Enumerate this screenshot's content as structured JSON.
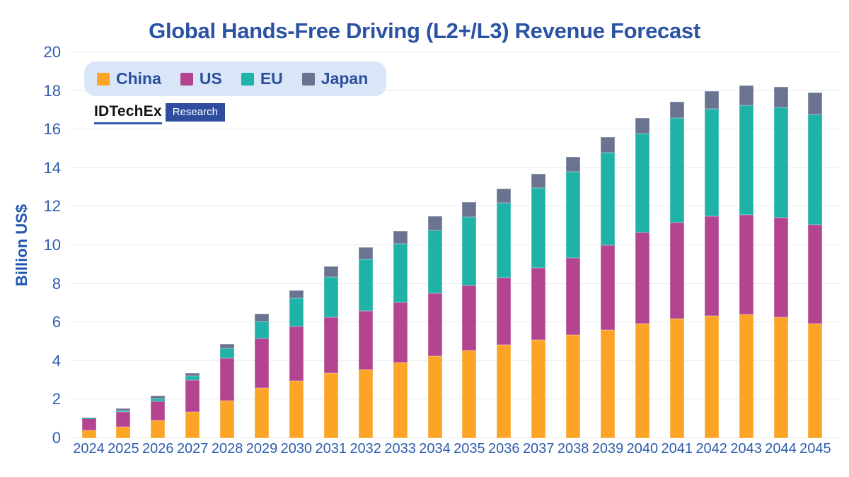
{
  "title": "Global Hands-Free Driving (L2+/L3) Revenue Forecast",
  "ylabel": "Billion US$",
  "logo": {
    "brand": "IDTechEx",
    "sub": "Research"
  },
  "colors": {
    "title_text": "#2b53a4",
    "axis_text": "#2e5cae",
    "legend_background": "#d8e6f8",
    "legend_text": "#2c4f9e",
    "gridline": "#e8eaee",
    "china": "#fca426",
    "us": "#b4448f",
    "eu": "#1fb2a9",
    "japan": "#6a7490"
  },
  "chart_data": {
    "type": "bar",
    "stacked": true,
    "title": "Global Hands-Free Driving (L2+/L3) Revenue Forecast",
    "xlabel": "",
    "ylabel": "Billion US$",
    "ylim": [
      0,
      20
    ],
    "ytick_step": 2,
    "ytick_labels": [
      "0",
      "2",
      "4",
      "6",
      "8",
      "10",
      "12",
      "14",
      "16",
      "18",
      "20"
    ],
    "grid": "horizontal",
    "legend_position": "top-left",
    "categories": [
      "2024",
      "2025",
      "2026",
      "2027",
      "2028",
      "2029",
      "2030",
      "2031",
      "2032",
      "2033",
      "2034",
      "2035",
      "2036",
      "2037",
      "2038",
      "2039",
      "2040",
      "2041",
      "2042",
      "2043",
      "2044",
      "2045"
    ],
    "series": [
      {
        "name": "China",
        "color": "#fca426",
        "values": [
          0.4,
          0.57,
          0.92,
          1.37,
          1.95,
          2.59,
          2.96,
          3.36,
          3.56,
          3.91,
          4.25,
          4.55,
          4.82,
          5.09,
          5.34,
          5.62,
          5.95,
          6.2,
          6.32,
          6.42,
          6.27,
          5.95
        ]
      },
      {
        "name": "US",
        "color": "#b4448f",
        "values": [
          0.62,
          0.78,
          1.0,
          1.62,
          2.2,
          2.56,
          2.82,
          2.92,
          3.03,
          3.13,
          3.26,
          3.36,
          3.51,
          3.73,
          4.0,
          4.39,
          4.7,
          4.97,
          5.18,
          5.16,
          5.17,
          5.1
        ]
      },
      {
        "name": "EU",
        "color": "#1fb2a9",
        "values": [
          0.02,
          0.09,
          0.12,
          0.22,
          0.51,
          0.9,
          1.46,
          2.06,
          2.66,
          3.03,
          3.27,
          3.57,
          3.86,
          4.15,
          4.48,
          4.79,
          5.14,
          5.44,
          5.56,
          5.69,
          5.7,
          5.74
        ]
      },
      {
        "name": "Japan",
        "color": "#6a7490",
        "values": [
          0.02,
          0.09,
          0.16,
          0.17,
          0.22,
          0.39,
          0.43,
          0.55,
          0.64,
          0.67,
          0.73,
          0.75,
          0.75,
          0.73,
          0.77,
          0.81,
          0.82,
          0.81,
          0.93,
          1.01,
          1.08,
          1.12
        ]
      }
    ]
  }
}
